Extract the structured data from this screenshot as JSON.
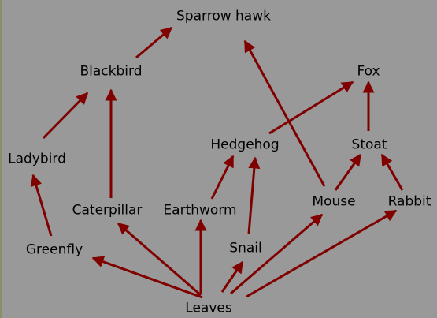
{
  "diagram": {
    "colors": {
      "background": "#999999",
      "arrow": "#800000",
      "text": "#000000"
    },
    "nodes": {
      "sparrow_hawk": "Sparrow hawk",
      "blackbird": "Blackbird",
      "fox": "Fox",
      "ladybird": "Ladybird",
      "hedgehog": "Hedgehog",
      "stoat": "Stoat",
      "caterpillar": "Caterpillar",
      "earthworm": "Earthworm",
      "mouse": "Mouse",
      "rabbit": "Rabbit",
      "greenfly": "Greenfly",
      "snail": "Snail",
      "leaves": "Leaves"
    },
    "edges": [
      [
        "leaves",
        "greenfly"
      ],
      [
        "leaves",
        "caterpillar"
      ],
      [
        "leaves",
        "earthworm"
      ],
      [
        "leaves",
        "snail"
      ],
      [
        "leaves",
        "mouse"
      ],
      [
        "leaves",
        "rabbit"
      ],
      [
        "greenfly",
        "ladybird"
      ],
      [
        "ladybird",
        "blackbird"
      ],
      [
        "caterpillar",
        "blackbird"
      ],
      [
        "blackbird",
        "sparrow_hawk"
      ],
      [
        "earthworm",
        "hedgehog"
      ],
      [
        "snail",
        "hedgehog"
      ],
      [
        "hedgehog",
        "fox"
      ],
      [
        "mouse",
        "sparrow_hawk"
      ],
      [
        "mouse",
        "stoat"
      ],
      [
        "rabbit",
        "stoat"
      ],
      [
        "stoat",
        "fox"
      ]
    ]
  }
}
